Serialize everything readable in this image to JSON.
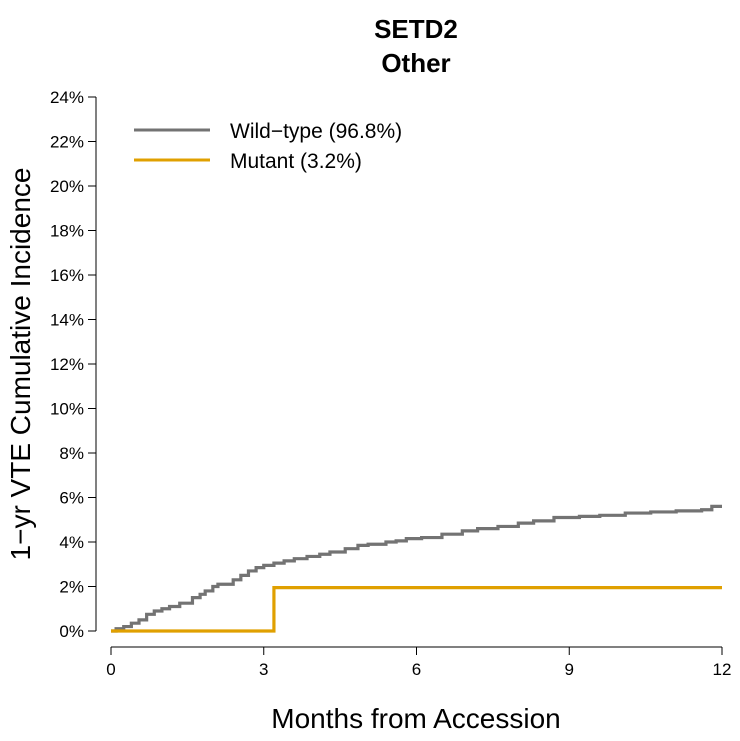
{
  "chart_data": {
    "type": "line",
    "title": "SETD2",
    "subtitle": "Other",
    "xlabel": "Months from Accession",
    "ylabel": "1−yr VTE Cumulative Incidence",
    "xlim": [
      0,
      12
    ],
    "ylim": [
      0,
      24
    ],
    "x_ticks": [
      0,
      3,
      6,
      9,
      12
    ],
    "x_tick_labels": [
      "0",
      "3",
      "6",
      "9",
      "12"
    ],
    "y_ticks": [
      0,
      2,
      4,
      6,
      8,
      10,
      12,
      14,
      16,
      18,
      20,
      22,
      24
    ],
    "y_tick_labels": [
      "0%",
      "2%",
      "4%",
      "6%",
      "8%",
      "10%",
      "12%",
      "14%",
      "16%",
      "18%",
      "20%",
      "22%",
      "24%"
    ],
    "grid": false,
    "legend_position": "top-left",
    "series": [
      {
        "name": "Wild−type (96.8%)",
        "color": "#737373",
        "step": true,
        "x": [
          0,
          0.1,
          0.25,
          0.4,
          0.55,
          0.7,
          0.85,
          1.0,
          1.15,
          1.35,
          1.6,
          1.75,
          1.85,
          2.0,
          2.1,
          2.4,
          2.55,
          2.7,
          2.85,
          3.0,
          3.2,
          3.4,
          3.6,
          3.85,
          4.1,
          4.3,
          4.6,
          4.85,
          5.05,
          5.4,
          5.6,
          5.8,
          6.1,
          6.5,
          6.9,
          7.2,
          7.6,
          8.0,
          8.3,
          8.7,
          9.2,
          9.6,
          10.1,
          10.6,
          11.1,
          11.6,
          11.8,
          12.0
        ],
        "y": [
          0,
          0.1,
          0.2,
          0.35,
          0.5,
          0.75,
          0.9,
          1.0,
          1.1,
          1.25,
          1.5,
          1.65,
          1.8,
          2.0,
          2.1,
          2.3,
          2.5,
          2.7,
          2.85,
          2.95,
          3.05,
          3.15,
          3.25,
          3.35,
          3.45,
          3.55,
          3.7,
          3.85,
          3.9,
          4.0,
          4.05,
          4.15,
          4.2,
          4.35,
          4.5,
          4.6,
          4.7,
          4.85,
          4.95,
          5.1,
          5.15,
          5.2,
          5.3,
          5.35,
          5.4,
          5.45,
          5.6,
          5.6
        ]
      },
      {
        "name": "Mutant (3.2%)",
        "color": "#e0a000",
        "step": true,
        "x": [
          0,
          3.2,
          12.0
        ],
        "y": [
          0,
          1.95,
          1.95
        ]
      }
    ]
  }
}
